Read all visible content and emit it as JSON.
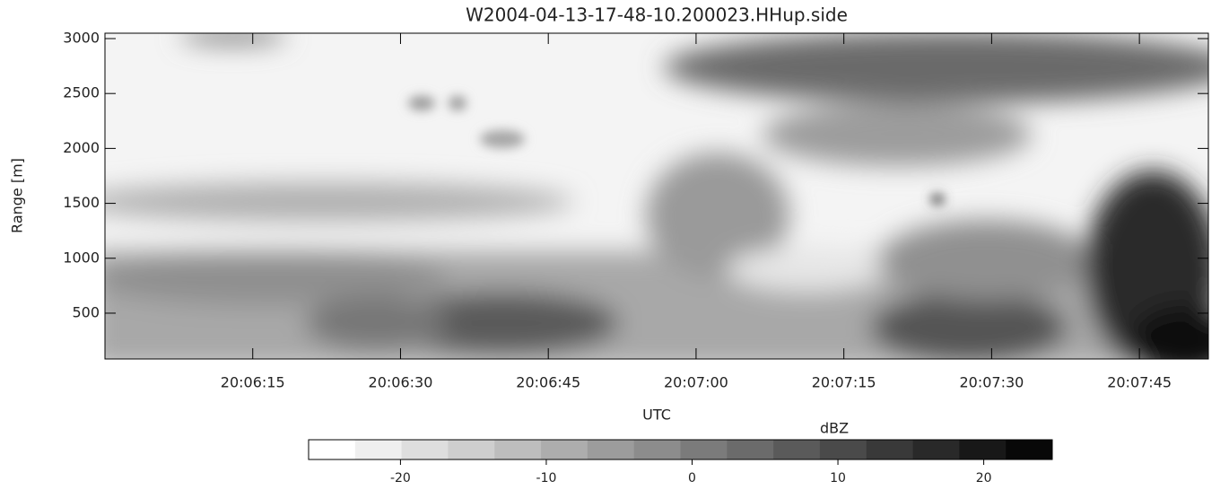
{
  "chart_data": {
    "type": "heatmap",
    "title": "W2004-04-13-17-48-10.200023.HHup.side",
    "x_label": "UTC",
    "y_label": "Range [m]",
    "xlim": [
      72360,
      72472
    ],
    "xticks": [
      {
        "value": 72375,
        "label": "20:06:15"
      },
      {
        "value": 72390,
        "label": "20:06:30"
      },
      {
        "value": 72405,
        "label": "20:06:45"
      },
      {
        "value": 72420,
        "label": "20:07:00"
      },
      {
        "value": 72435,
        "label": "20:07:15"
      },
      {
        "value": 72450,
        "label": "20:07:30"
      },
      {
        "value": 72465,
        "label": "20:07:45"
      }
    ],
    "ylim": [
      83,
      3049
    ],
    "yticks": [
      500,
      1000,
      1500,
      2000,
      2500,
      3000
    ],
    "colorbar": {
      "title": "dBZ",
      "lim": [
        -26.3,
        24.7
      ],
      "ticks": [
        -20,
        -10,
        0,
        10,
        20
      ],
      "colors": [
        "#ffffff",
        "#efefef",
        "#dedede",
        "#cecece",
        "#bdbdbd",
        "#adadad",
        "#9c9c9c",
        "#8c8c8c",
        "#7b7b7b",
        "#6b6b6b",
        "#5a5a5a",
        "#4a4a4a",
        "#393939",
        "#292929",
        "#181818",
        "#080808"
      ]
    }
  }
}
